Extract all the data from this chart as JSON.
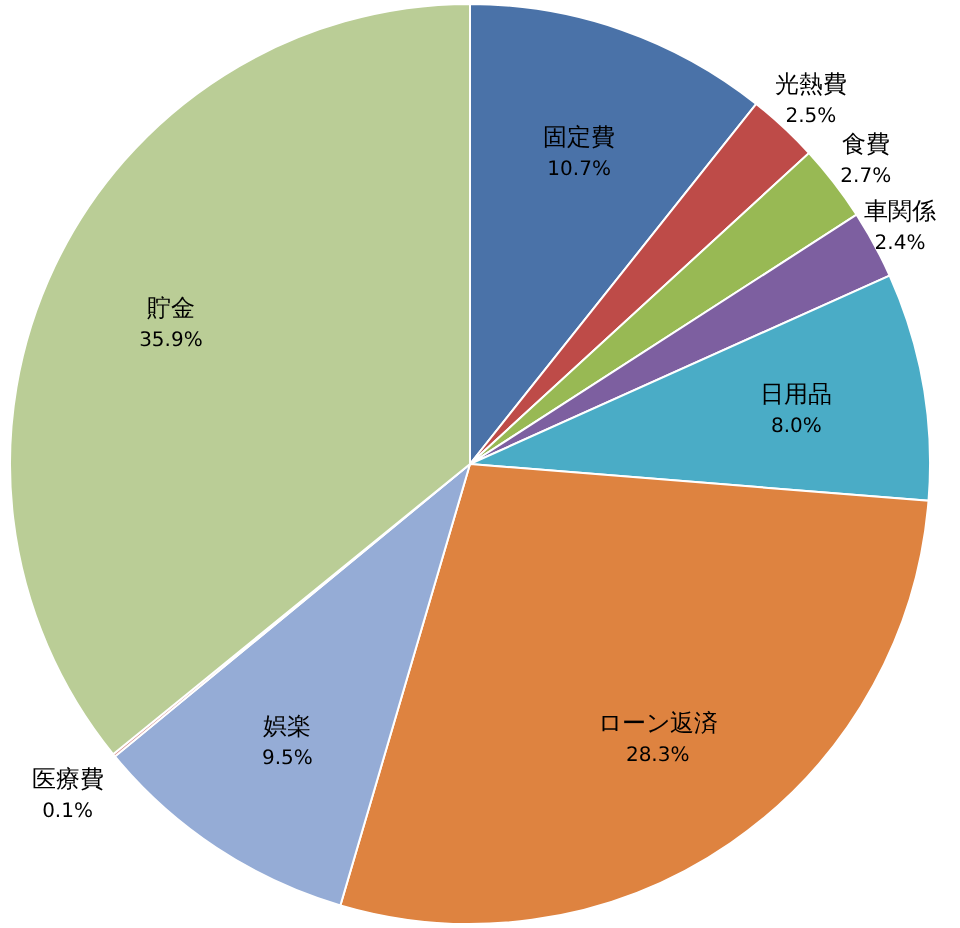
{
  "chart_data": {
    "type": "pie",
    "categories": [
      "固定費",
      "光熱費",
      "食費",
      "車関係",
      "日用品",
      "ローン返済",
      "娯楽",
      "医療費",
      "貯金"
    ],
    "values": [
      10.7,
      2.5,
      2.7,
      2.4,
      8.0,
      28.3,
      9.5,
      0.1,
      35.9
    ],
    "value_labels": [
      "10.7%",
      "2.5%",
      "2.7%",
      "2.4%",
      "8.0%",
      "28.3%",
      "9.5%",
      "0.1%",
      "35.9%"
    ],
    "colors": [
      "#4a72a8",
      "#be4b48",
      "#98b954",
      "#7d5fa0",
      "#4aacc6",
      "#de8340",
      "#95acd6",
      "#d99795",
      "#bacd96"
    ]
  }
}
